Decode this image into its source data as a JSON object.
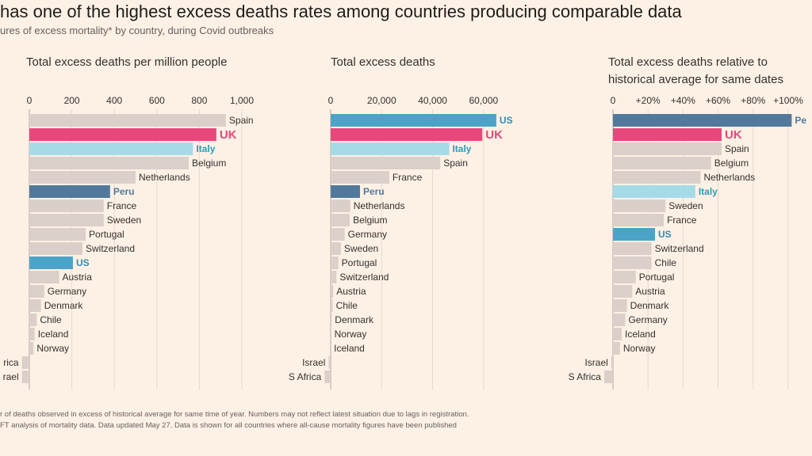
{
  "header": {
    "headline": "has one of the highest excess deaths rates among countries producing comparable data",
    "subtitle": "ures of excess mortality* by country, during Covid outbreaks"
  },
  "footer": {
    "note": "r of deaths observed in excess of historical average for same time of year. Numbers may not reflect latest situation due to lags in registration.",
    "source": "FT analysis of mortality data. Data updated May 27. Data is shown for all countries where all-cause mortality figures have been published"
  },
  "colors": {
    "background": "#fdf1e5",
    "default_bar": "#dbcfc9",
    "uk": "#e8477c",
    "italy": "#a5dbe6",
    "peru": "#52799c",
    "us": "#4ba4c8",
    "gridline": "#e5d8cf",
    "axis": "#b2a89f"
  },
  "chart_data": [
    {
      "type": "bar",
      "orientation": "horizontal",
      "title": "Total excess deaths per million people",
      "xlim": [
        0,
        1000
      ],
      "ticks": [
        0,
        200,
        400,
        600,
        800,
        1000
      ],
      "tick_labels": [
        "0",
        "200",
        "400",
        "600",
        "800",
        "1,000"
      ],
      "categories": [
        "Spain",
        "UK",
        "Italy",
        "Belgium",
        "Netherlands",
        "Peru",
        "France",
        "Sweden",
        "Portugal",
        "Switzerland",
        "US",
        "Austria",
        "Germany",
        "Denmark",
        "Chile",
        "Iceland",
        "Norway",
        "S Africa",
        "Israel"
      ],
      "display_labels": [
        "Spain",
        "UK",
        "Italy",
        "Belgium",
        "Netherlands",
        "Peru",
        "France",
        "Sweden",
        "Portugal",
        "Switzerland",
        "US",
        "Austria",
        "Germany",
        "Denmark",
        "Chile",
        "Iceland",
        "Norway",
        "rica",
        "rael"
      ],
      "values": [
        925,
        880,
        770,
        750,
        500,
        380,
        350,
        350,
        265,
        250,
        205,
        140,
        70,
        55,
        35,
        25,
        20,
        -35,
        -35
      ],
      "highlights": {
        "UK": "uk",
        "Italy": "italy",
        "Peru": "peru",
        "US": "us"
      }
    },
    {
      "type": "bar",
      "orientation": "horizontal",
      "title": "Total excess deaths",
      "xlim": [
        0,
        70000
      ],
      "ticks": [
        0,
        20000,
        40000,
        60000
      ],
      "tick_labels": [
        "0",
        "20,000",
        "40,000",
        "60,000"
      ],
      "categories": [
        "US",
        "UK",
        "Italy",
        "Spain",
        "France",
        "Peru",
        "Netherlands",
        "Belgium",
        "Germany",
        "Sweden",
        "Portugal",
        "Switzerland",
        "Austria",
        "Chile",
        "Denmark",
        "Norway",
        "Iceland",
        "Israel",
        "S Africa"
      ],
      "values": [
        65000,
        59500,
        46500,
        43000,
        23000,
        11500,
        7700,
        7500,
        5500,
        4000,
        3000,
        2300,
        1000,
        800,
        400,
        200,
        50,
        -800,
        -2400
      ],
      "highlights": {
        "UK": "uk",
        "Italy": "italy",
        "Peru": "peru",
        "US": "us"
      }
    },
    {
      "type": "bar",
      "orientation": "horizontal",
      "title": "Total excess deaths relative to historical average for same dates",
      "title_lines": [
        "Total excess deaths relative to",
        "historical average for same dates"
      ],
      "xlim": [
        0,
        105
      ],
      "unit": "%",
      "ticks": [
        0,
        20,
        40,
        60,
        80,
        100
      ],
      "tick_labels": [
        "0",
        "+20%",
        "+40%",
        "+60%",
        "+80%",
        "+100%"
      ],
      "categories": [
        "Peru",
        "UK",
        "Spain",
        "Belgium",
        "Netherlands",
        "Italy",
        "Sweden",
        "France",
        "US",
        "Switzerland",
        "Chile",
        "Portugal",
        "Austria",
        "Denmark",
        "Germany",
        "Iceland",
        "Norway",
        "Israel",
        "S Africa"
      ],
      "display_labels": [
        "Pe",
        "UK",
        "Spain",
        "Belgium",
        "Netherlands",
        "Italy",
        "Sweden",
        "France",
        "US",
        "Switzerland",
        "Chile",
        "Portugal",
        "Austria",
        "Denmark",
        "Germany",
        "Iceland",
        "Norway",
        "Israel",
        "S Africa"
      ],
      "values": [
        102,
        62,
        62,
        56,
        50,
        47,
        30,
        29,
        24,
        22,
        22,
        13,
        11,
        8,
        7,
        5,
        4,
        -1,
        -5
      ],
      "highlights": {
        "UK": "uk",
        "Italy": "italy",
        "Peru": "peru",
        "US": "us"
      }
    }
  ]
}
